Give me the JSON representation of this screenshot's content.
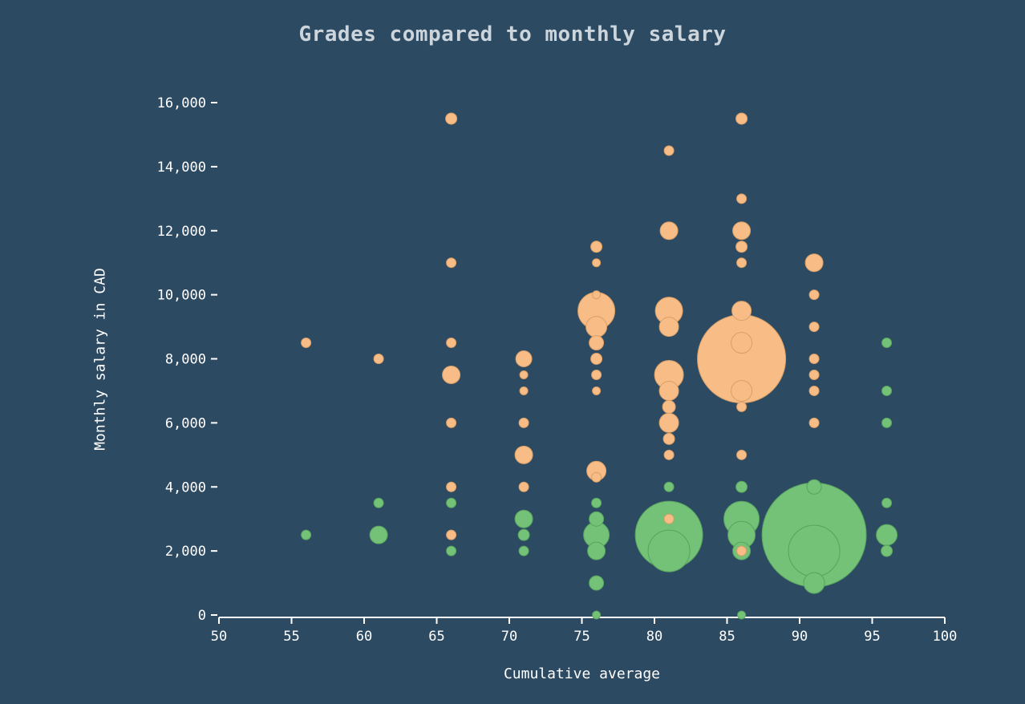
{
  "chart_data": {
    "type": "scatter",
    "title": "Grades compared to monthly salary",
    "xlabel": "Cumulative average",
    "ylabel": "Monthly salary in CAD",
    "xlim": [
      50,
      100
    ],
    "ylim": [
      0,
      16000
    ],
    "xticks": [
      50,
      55,
      60,
      65,
      70,
      75,
      80,
      85,
      90,
      95,
      100
    ],
    "yticks": [
      0,
      2000,
      4000,
      6000,
      8000,
      10000,
      12000,
      14000,
      16000
    ],
    "grid": false,
    "legend_position": "none",
    "point_format": [
      "x_cumulative_average",
      "y_monthly_salary_cad",
      "bubble_radius_px"
    ],
    "colors": {
      "background": "#2d4a63",
      "title": "#ccd5db",
      "axis_text": "#ffffff",
      "axis_line": "#ffffff"
    },
    "series": [
      {
        "name": "orange-bubbles",
        "color": "#f8bd87",
        "stroke": "#d89f66",
        "points": [
          [
            56,
            8500,
            6
          ],
          [
            61,
            8000,
            6
          ],
          [
            66,
            15500,
            7
          ],
          [
            66,
            11000,
            6
          ],
          [
            66,
            8500,
            6
          ],
          [
            66,
            7500,
            11
          ],
          [
            66,
            6000,
            6
          ],
          [
            66,
            4000,
            6
          ],
          [
            66,
            2500,
            6
          ],
          [
            71,
            8000,
            10
          ],
          [
            71,
            7500,
            5
          ],
          [
            71,
            7000,
            5
          ],
          [
            71,
            6000,
            6
          ],
          [
            71,
            5000,
            11
          ],
          [
            71,
            4000,
            6
          ],
          [
            76,
            11500,
            7
          ],
          [
            76,
            11000,
            5
          ],
          [
            76,
            10000,
            5
          ],
          [
            76,
            9500,
            23
          ],
          [
            76,
            9000,
            13
          ],
          [
            76,
            8500,
            9
          ],
          [
            76,
            8000,
            7
          ],
          [
            76,
            7500,
            6
          ],
          [
            76,
            7000,
            5
          ],
          [
            76,
            4500,
            12
          ],
          [
            76,
            4300,
            6
          ],
          [
            81,
            14500,
            6
          ],
          [
            81,
            12000,
            11
          ],
          [
            81,
            9500,
            17
          ],
          [
            81,
            9000,
            12
          ],
          [
            81,
            7500,
            18
          ],
          [
            81,
            7000,
            12
          ],
          [
            81,
            6500,
            8
          ],
          [
            81,
            6000,
            12
          ],
          [
            81,
            5500,
            7
          ],
          [
            81,
            5000,
            6
          ],
          [
            81,
            3000,
            6
          ],
          [
            86,
            15500,
            7
          ],
          [
            86,
            13000,
            6
          ],
          [
            86,
            12000,
            11
          ],
          [
            86,
            11500,
            7
          ],
          [
            86,
            11000,
            6
          ],
          [
            86,
            9500,
            12
          ],
          [
            86,
            8500,
            13
          ],
          [
            86,
            8000,
            55
          ],
          [
            86,
            7000,
            13
          ],
          [
            86,
            6500,
            6
          ],
          [
            86,
            5000,
            6
          ],
          [
            86,
            2000,
            6
          ],
          [
            91,
            11000,
            11
          ],
          [
            91,
            10000,
            6
          ],
          [
            91,
            9000,
            6
          ],
          [
            91,
            8000,
            6
          ],
          [
            91,
            7500,
            6
          ],
          [
            91,
            7000,
            6
          ],
          [
            91,
            6000,
            6
          ]
        ]
      },
      {
        "name": "green-bubbles",
        "color": "#73c277",
        "stroke": "#58a35f",
        "points": [
          [
            56,
            2500,
            6
          ],
          [
            61,
            3500,
            6
          ],
          [
            61,
            2500,
            11
          ],
          [
            66,
            3500,
            6
          ],
          [
            66,
            2000,
            6
          ],
          [
            71,
            3000,
            11
          ],
          [
            71,
            2500,
            7
          ],
          [
            71,
            2000,
            6
          ],
          [
            76,
            3500,
            6
          ],
          [
            76,
            3000,
            9
          ],
          [
            76,
            2500,
            16
          ],
          [
            76,
            2000,
            11
          ],
          [
            76,
            1000,
            9
          ],
          [
            76,
            0,
            5
          ],
          [
            81,
            4000,
            6
          ],
          [
            81,
            2500,
            42
          ],
          [
            81,
            2000,
            26
          ],
          [
            86,
            4000,
            7
          ],
          [
            86,
            3000,
            22
          ],
          [
            86,
            2500,
            17
          ],
          [
            86,
            2000,
            11
          ],
          [
            86,
            0,
            5
          ],
          [
            91,
            4000,
            9
          ],
          [
            91,
            2500,
            65
          ],
          [
            91,
            2000,
            32
          ],
          [
            91,
            1000,
            13
          ],
          [
            96,
            8500,
            6
          ],
          [
            96,
            7000,
            6
          ],
          [
            96,
            6000,
            6
          ],
          [
            96,
            3500,
            6
          ],
          [
            96,
            2500,
            13
          ],
          [
            96,
            2000,
            7
          ]
        ]
      }
    ]
  }
}
